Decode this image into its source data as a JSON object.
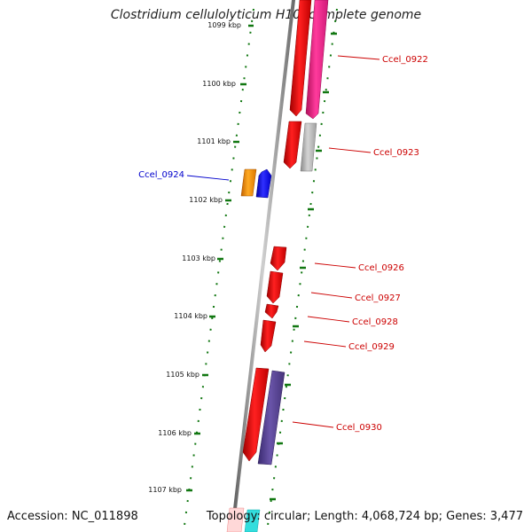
{
  "title": "Clostridium cellulolyticum H10, complete genome",
  "accession": "Accession: NC_011898",
  "topology": "Topology: circular; Length: 4,068,724 bp; Genes: 3,477",
  "kbp_labels": [
    "1099 kbp",
    "1100 kbp",
    "1101 kbp",
    "1102 kbp",
    "1103 kbp",
    "1104 kbp",
    "1105 kbp",
    "1106 kbp",
    "1107 kbp"
  ],
  "gene_labels": [
    "Ccel_0922",
    "Ccel_0923",
    "Ccel_0924",
    "Ccel_0926",
    "Ccel_0927",
    "Ccel_0928",
    "Ccel_0929",
    "Ccel_0930"
  ],
  "colors": {
    "red": "#ee1111",
    "pink": "#ee2288",
    "grey": "#b0b0b0",
    "orange": "#ee8800",
    "blue": "#1111ee",
    "purple": "#553d8c",
    "tick_green": "#117711",
    "label_red": "#cc0000",
    "label_blue": "#0000cc"
  }
}
